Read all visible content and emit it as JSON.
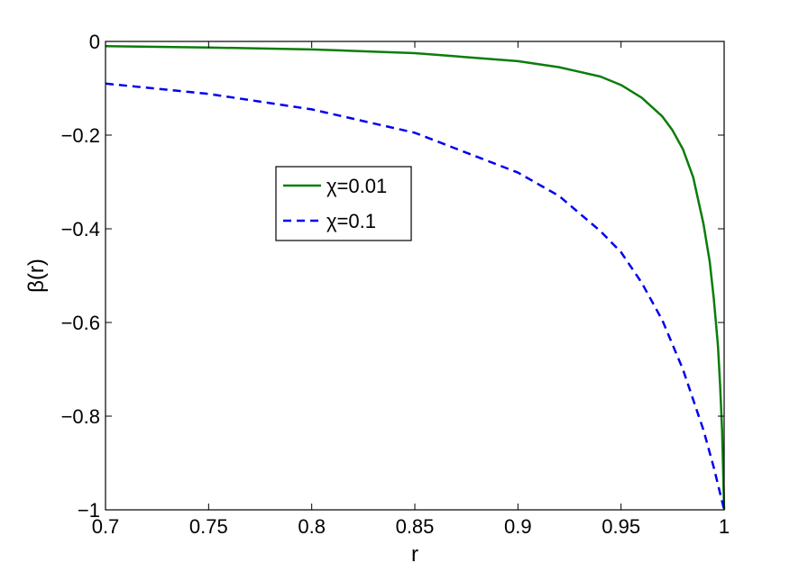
{
  "chart_data": {
    "type": "line",
    "xlabel": "r",
    "ylabel": "β(r)",
    "xlim": [
      0.7,
      1.0
    ],
    "ylim": [
      -1.0,
      0.0
    ],
    "x_ticks": [
      0.7,
      0.75,
      0.8,
      0.85,
      0.9,
      0.95,
      1.0
    ],
    "x_tick_labels": [
      "0.7",
      "0.75",
      "0.8",
      "0.85",
      "0.9",
      "0.95",
      "1"
    ],
    "y_ticks": [
      0.0,
      -0.2,
      -0.4,
      -0.6,
      -0.8,
      -1.0
    ],
    "y_tick_labels": [
      "0",
      "−0.2",
      "−0.4",
      "−0.6",
      "−0.8",
      "−1"
    ],
    "grid": false,
    "legend_position": "upper-left-center",
    "series": [
      {
        "name": "χ=0.01",
        "color": "#0a7d0a",
        "style": "solid",
        "x": [
          0.7,
          0.75,
          0.8,
          0.85,
          0.9,
          0.92,
          0.94,
          0.95,
          0.96,
          0.97,
          0.975,
          0.98,
          0.985,
          0.99,
          0.993,
          0.995,
          0.997,
          0.998,
          0.999,
          1.0
        ],
        "y": [
          -0.01,
          -0.013,
          -0.017,
          -0.025,
          -0.042,
          -0.055,
          -0.075,
          -0.093,
          -0.12,
          -0.16,
          -0.19,
          -0.23,
          -0.29,
          -0.39,
          -0.47,
          -0.55,
          -0.65,
          -0.73,
          -0.83,
          -1.0
        ]
      },
      {
        "name": "χ=0.1",
        "color": "#0000ee",
        "style": "dashed",
        "x": [
          0.7,
          0.75,
          0.8,
          0.85,
          0.9,
          0.92,
          0.94,
          0.95,
          0.96,
          0.97,
          0.98,
          0.99,
          0.995,
          1.0
        ],
        "y": [
          -0.09,
          -0.112,
          -0.145,
          -0.195,
          -0.28,
          -0.33,
          -0.405,
          -0.45,
          -0.515,
          -0.595,
          -0.7,
          -0.83,
          -0.91,
          -1.0
        ]
      }
    ]
  }
}
